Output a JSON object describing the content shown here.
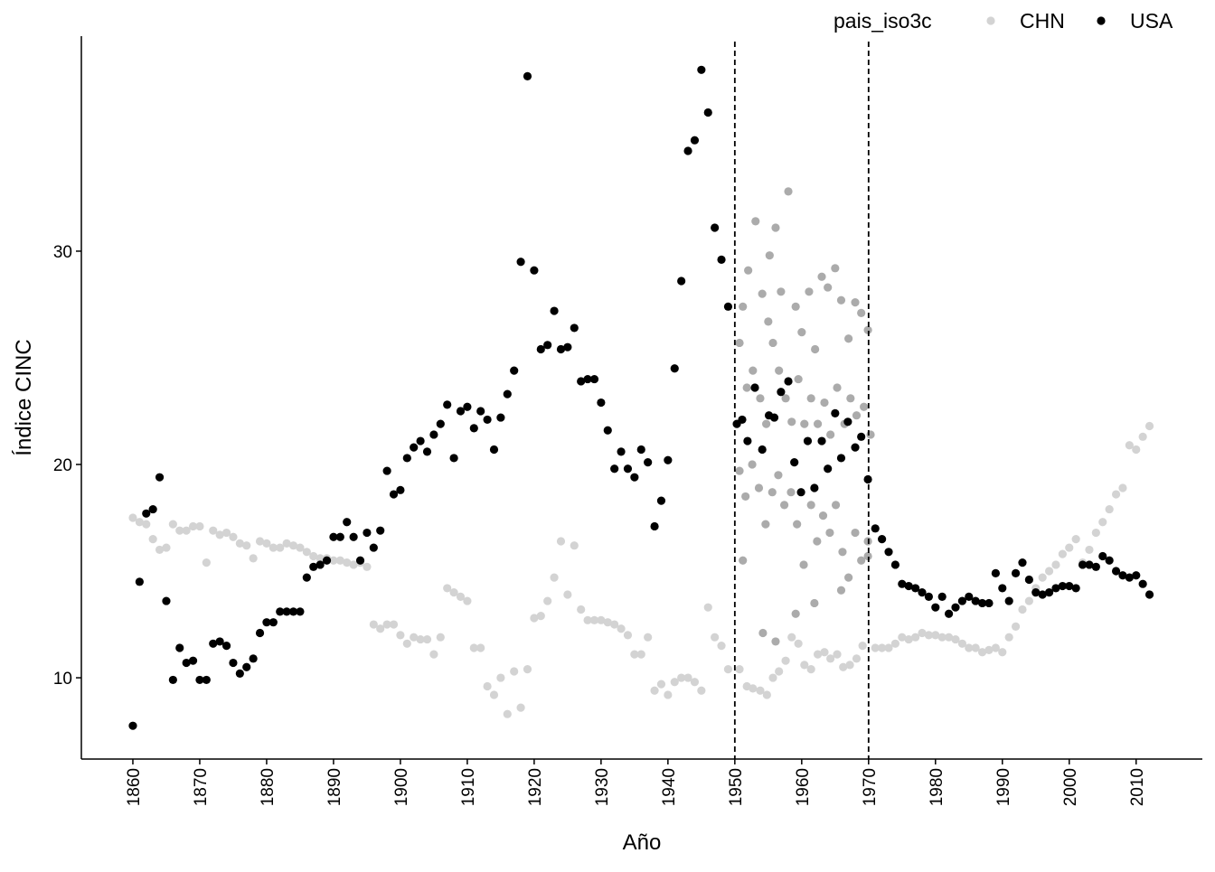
{
  "chart_data": {
    "type": "scatter",
    "x_label": "Año",
    "y_label": "Índice CINC",
    "legend_title": "pais_iso3c",
    "legend_position": "top-right",
    "xlim": [
      1852.3,
      2019.9
    ],
    "ylim": [
      6.19,
      40.08
    ],
    "xticks": [
      1860,
      1870,
      1880,
      1890,
      1900,
      1910,
      1920,
      1930,
      1940,
      1950,
      1960,
      1970,
      1980,
      1990,
      2000,
      2010
    ],
    "yticks": [
      10,
      20,
      30
    ],
    "vlines": [
      1950,
      1970
    ],
    "grid": false,
    "series": [
      {
        "name": "CHN",
        "color": "#d3d3d3",
        "x": [
          1860,
          1861,
          1862,
          1863,
          1864,
          1865,
          1866,
          1867,
          1868,
          1869,
          1870,
          1871,
          1872,
          1873,
          1874,
          1875,
          1876,
          1877,
          1878,
          1879,
          1880,
          1881,
          1882,
          1883,
          1884,
          1885,
          1886,
          1887,
          1888,
          1889,
          1890,
          1891,
          1892,
          1893,
          1894,
          1895,
          1896,
          1897,
          1898,
          1899,
          1900,
          1901,
          1902,
          1903,
          1904,
          1905,
          1906,
          1907,
          1908,
          1909,
          1910,
          1911,
          1912,
          1913,
          1914,
          1915,
          1916,
          1917,
          1918,
          1919,
          1920,
          1921,
          1922,
          1923,
          1924,
          1925,
          1926,
          1927,
          1928,
          1929,
          1930,
          1931,
          1932,
          1933,
          1934,
          1935,
          1936,
          1937,
          1938,
          1939,
          1940,
          1941,
          1942,
          1943,
          1944,
          1945,
          1946,
          1947,
          1948,
          1949,
          1950.7,
          1951.8,
          1952.7,
          1953.8,
          1954.8,
          1955.7,
          1956.6,
          1957.6,
          1958.5,
          1959.5,
          1960.4,
          1961.4,
          1962.4,
          1963.4,
          1964.3,
          1965.3,
          1966.2,
          1967.2,
          1968.2,
          1969.1,
          1971,
          1972,
          1973,
          1974,
          1975,
          1976,
          1977,
          1978,
          1979,
          1980,
          1981,
          1982,
          1983,
          1984,
          1985,
          1986,
          1987,
          1988,
          1989,
          1990,
          1991,
          1992,
          1993,
          1994,
          1995,
          1996,
          1997,
          1998,
          1999,
          2000,
          2001,
          2002,
          2003,
          2004,
          2005,
          2006,
          2007,
          2008,
          2009,
          2010,
          2011,
          2012
        ],
        "values": [
          17.5,
          17.3,
          17.2,
          16.5,
          16.0,
          16.1,
          17.2,
          16.9,
          16.9,
          17.1,
          17.1,
          15.4,
          16.9,
          16.7,
          16.8,
          16.6,
          16.3,
          16.2,
          15.6,
          16.4,
          16.3,
          16.1,
          16.1,
          16.3,
          16.2,
          16.1,
          15.9,
          15.7,
          15.6,
          15.6,
          15.5,
          15.5,
          15.4,
          15.3,
          15.4,
          15.2,
          12.5,
          12.3,
          12.5,
          12.5,
          12.0,
          11.6,
          11.9,
          11.8,
          11.8,
          11.1,
          11.9,
          14.2,
          14.0,
          13.8,
          13.6,
          11.4,
          11.4,
          9.6,
          9.2,
          10.0,
          8.3,
          10.3,
          8.6,
          10.4,
          12.8,
          12.9,
          13.6,
          14.7,
          16.4,
          13.9,
          16.2,
          13.2,
          12.7,
          12.7,
          12.7,
          12.6,
          12.5,
          12.3,
          12.0,
          11.1,
          11.1,
          11.9,
          9.4,
          9.7,
          9.2,
          9.8,
          10.0,
          10.0,
          9.8,
          9.4,
          13.3,
          11.9,
          11.5,
          10.4,
          10.4,
          9.6,
          9.5,
          9.4,
          9.2,
          10.0,
          10.3,
          10.8,
          11.9,
          11.6,
          10.6,
          10.4,
          11.1,
          11.2,
          10.9,
          11.1,
          10.5,
          10.6,
          10.9,
          11.5,
          11.4,
          11.4,
          11.4,
          11.6,
          11.9,
          11.8,
          11.9,
          12.1,
          12.0,
          12.0,
          11.9,
          11.9,
          11.8,
          11.6,
          11.4,
          11.4,
          11.2,
          11.3,
          11.4,
          11.2,
          11.9,
          12.4,
          13.2,
          13.6,
          14.2,
          14.7,
          15.0,
          15.3,
          15.8,
          16.1,
          16.5,
          15.4,
          16.0,
          16.8,
          17.3,
          17.9,
          18.6,
          18.9,
          20.9,
          20.7,
          21.3,
          21.8
        ]
      },
      {
        "name": "USA",
        "color": "#000000",
        "x": [
          1860,
          1861,
          1862,
          1863,
          1864,
          1865,
          1866,
          1867,
          1868,
          1869,
          1870,
          1871,
          1872,
          1873,
          1874,
          1875,
          1876,
          1877,
          1878,
          1879,
          1880,
          1881,
          1882,
          1883,
          1884,
          1885,
          1886,
          1887,
          1888,
          1889,
          1890,
          1891,
          1892,
          1893,
          1894,
          1895,
          1896,
          1897,
          1898,
          1899,
          1900,
          1901,
          1902,
          1903,
          1904,
          1905,
          1906,
          1907,
          1908,
          1909,
          1910,
          1911,
          1912,
          1913,
          1914,
          1915,
          1916,
          1917,
          1918,
          1919,
          1920,
          1921,
          1922,
          1923,
          1924,
          1925,
          1926,
          1927,
          1928,
          1929,
          1930,
          1931,
          1932,
          1933,
          1934,
          1935,
          1936,
          1937,
          1938,
          1939,
          1940,
          1941,
          1942,
          1943,
          1944,
          1945,
          1946,
          1947,
          1948,
          1949,
          1950.3,
          1951.1,
          1951.9,
          1953.0,
          1954.1,
          1955.1,
          1955.9,
          1956.9,
          1958.0,
          1958.9,
          1959.9,
          1960.9,
          1961.9,
          1963.0,
          1963.9,
          1965.0,
          1965.9,
          1966.9,
          1968.0,
          1968.9,
          1969.9,
          1971,
          1972,
          1973,
          1974,
          1975,
          1976,
          1977,
          1978,
          1979,
          1980,
          1981,
          1982,
          1983,
          1984,
          1985,
          1986,
          1987,
          1988,
          1989,
          1990,
          1991,
          1992,
          1993,
          1994,
          1995,
          1996,
          1997,
          1998,
          1999,
          2000,
          2001,
          2002,
          2003,
          2004,
          2005,
          2006,
          2007,
          2008,
          2009,
          2010,
          2011,
          2012
        ],
        "values": [
          7.75,
          14.5,
          17.7,
          17.9,
          19.4,
          13.6,
          9.9,
          11.4,
          10.7,
          10.8,
          9.9,
          9.9,
          11.6,
          11.7,
          11.5,
          10.7,
          10.2,
          10.5,
          10.9,
          12.1,
          12.6,
          12.6,
          13.1,
          13.1,
          13.1,
          13.1,
          14.7,
          15.2,
          15.3,
          15.5,
          16.6,
          16.6,
          17.3,
          16.6,
          15.5,
          16.8,
          16.1,
          16.9,
          19.7,
          18.6,
          18.8,
          20.3,
          20.8,
          21.1,
          20.6,
          21.4,
          21.9,
          22.8,
          20.3,
          22.5,
          22.7,
          21.7,
          22.5,
          22.1,
          20.7,
          22.2,
          23.3,
          24.4,
          29.5,
          38.2,
          29.1,
          25.4,
          25.6,
          27.2,
          25.4,
          25.5,
          26.4,
          23.9,
          24.0,
          24.0,
          22.9,
          21.6,
          19.8,
          20.6,
          19.8,
          19.4,
          20.7,
          20.1,
          17.1,
          18.3,
          20.2,
          24.5,
          28.6,
          34.7,
          35.2,
          38.5,
          36.5,
          31.1,
          29.6,
          27.4,
          21.9,
          22.1,
          21.1,
          23.6,
          20.7,
          22.3,
          22.2,
          23.4,
          23.9,
          20.1,
          18.7,
          21.1,
          18.9,
          21.1,
          19.8,
          22.4,
          20.3,
          22.0,
          20.8,
          21.3,
          19.3,
          17.0,
          16.5,
          15.9,
          15.3,
          14.4,
          14.3,
          14.2,
          14.0,
          13.8,
          13.3,
          13.8,
          13.0,
          13.3,
          13.6,
          13.8,
          13.6,
          13.5,
          13.5,
          14.9,
          14.2,
          13.6,
          14.9,
          15.4,
          14.6,
          14.0,
          13.9,
          14.0,
          14.2,
          14.3,
          14.3,
          14.2,
          15.3,
          15.3,
          15.2,
          15.7,
          15.5,
          15.0,
          14.8,
          14.7,
          14.8,
          14.4,
          13.9
        ]
      }
    ],
    "jitter": {
      "color": "#ababab",
      "x": [
        1951.2,
        1952.0,
        1953.1,
        1954.1,
        1955.0,
        1955.2,
        1956.1,
        1956.9,
        1958.0,
        1959.1,
        1960.0,
        1961.1,
        1962.0,
        1963.0,
        1963.9,
        1965.0,
        1965.9,
        1967.0,
        1968.0,
        1968.9,
        1969.9,
        1950.7,
        1951.8,
        1952.7,
        1953.8,
        1954.7,
        1955.7,
        1956.6,
        1957.6,
        1958.5,
        1959.5,
        1960.4,
        1961.4,
        1962.4,
        1963.4,
        1964.3,
        1965.3,
        1966.4,
        1967.3,
        1968.2,
        1969.3,
        1970.3,
        1950.7,
        1951.6,
        1952.6,
        1953.6,
        1954.6,
        1955.6,
        1956.5,
        1957.4,
        1958.4,
        1959.3,
        1960.3,
        1961.4,
        1962.3,
        1963.2,
        1964.2,
        1965.1,
        1966.1,
        1967.0,
        1968.0,
        1968.9,
        1969.9,
        1951.2,
        1954.2,
        1956.1,
        1959.1,
        1961.9,
        1965.9,
        1969.9
      ],
      "values": [
        27.4,
        29.1,
        31.4,
        28.0,
        26.7,
        29.8,
        31.1,
        28.1,
        32.8,
        27.4,
        26.2,
        28.1,
        25.4,
        28.8,
        28.3,
        29.2,
        27.7,
        25.9,
        27.6,
        27.1,
        26.3,
        25.7,
        23.6,
        24.4,
        23.1,
        21.9,
        25.7,
        24.4,
        23.1,
        22.0,
        24.0,
        21.9,
        23.1,
        21.9,
        22.9,
        21.4,
        23.6,
        21.9,
        23.1,
        22.3,
        22.7,
        21.4,
        19.7,
        18.5,
        20.0,
        18.9,
        17.2,
        18.7,
        19.5,
        18.1,
        18.7,
        17.2,
        15.3,
        18.1,
        16.4,
        17.6,
        16.8,
        18.1,
        15.9,
        14.7,
        16.8,
        15.5,
        16.4,
        15.5,
        12.1,
        11.7,
        13.0,
        13.5,
        14.1,
        15.7
      ]
    }
  }
}
